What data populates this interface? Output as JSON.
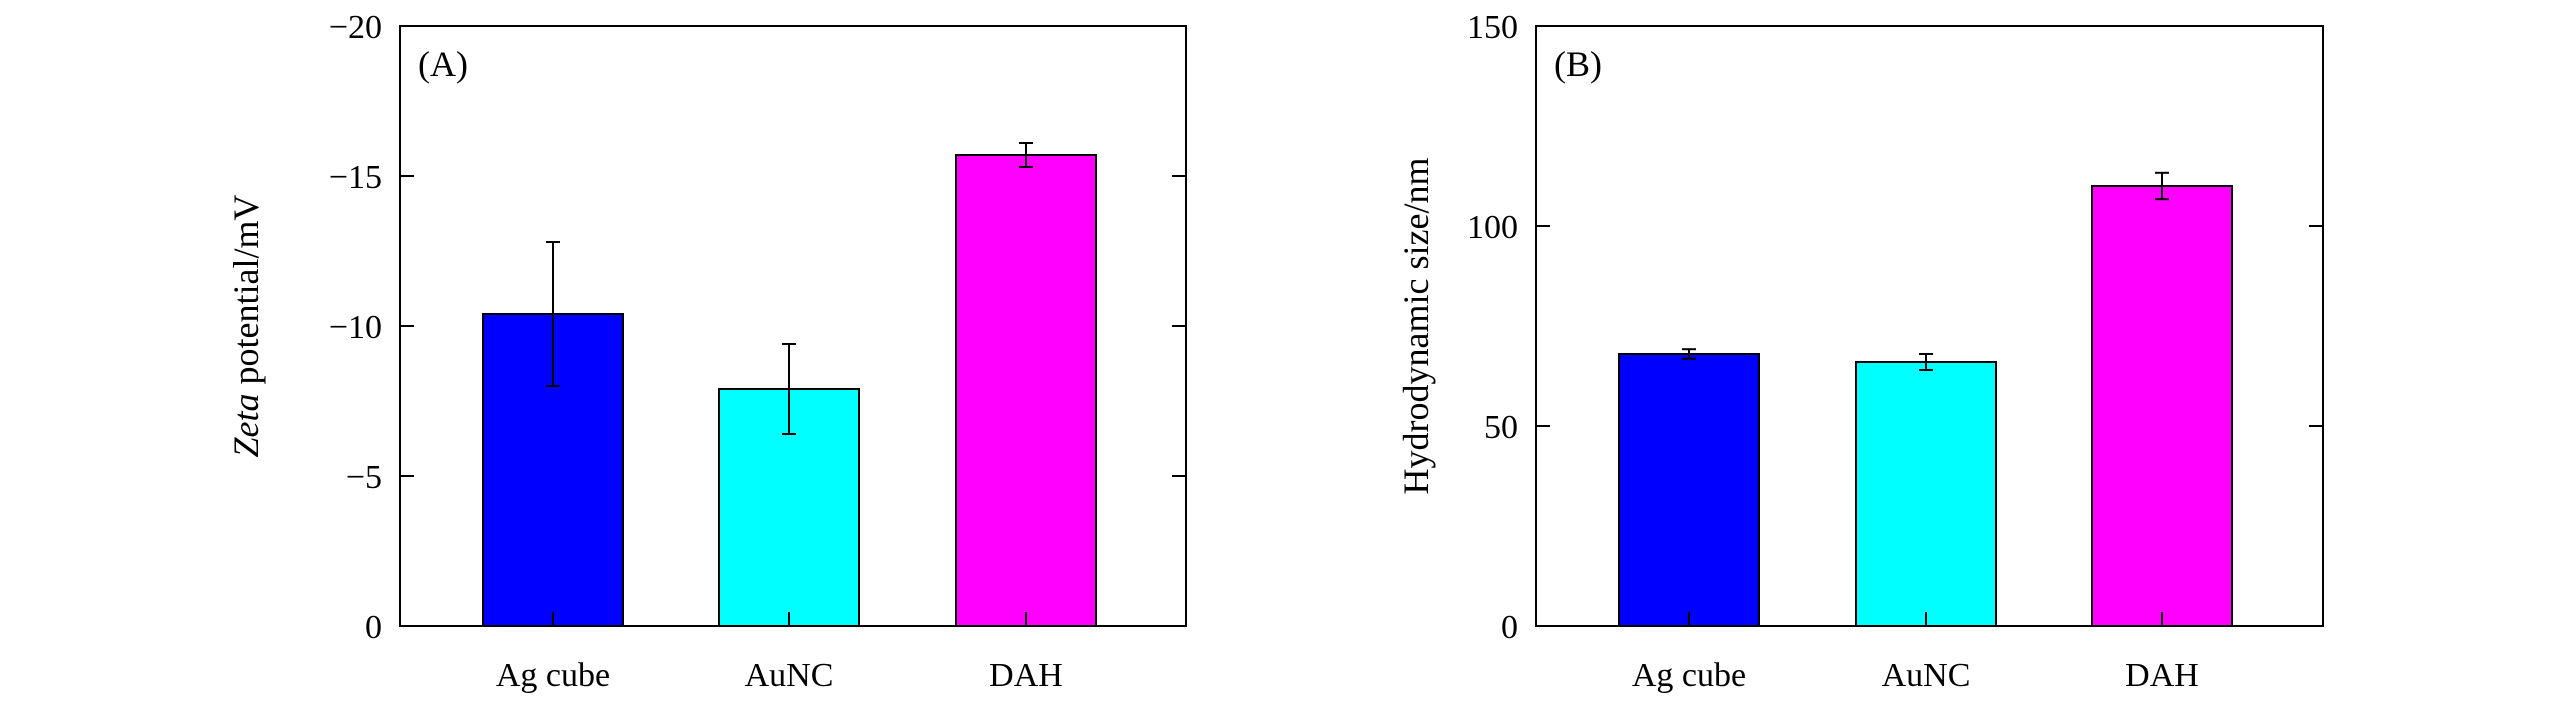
{
  "colors": {
    "Ag cube": "#0000ff",
    "AuNC": "#00ffff",
    "DAH": "#ff00ff",
    "stroke": "#000000"
  },
  "chart_data": [
    {
      "panel": "(A)",
      "type": "bar",
      "categories": [
        "Ag cube",
        "AuNC",
        "DAH"
      ],
      "values": [
        -10.4,
        -7.9,
        -15.7
      ],
      "errors": [
        2.4,
        1.5,
        0.4
      ],
      "ylabel_italic": "Zeta",
      "ylabel_rest": " potential/mV",
      "ylim": [
        0,
        -20
      ],
      "yticks": [
        0,
        -5,
        -10,
        -15,
        -20
      ],
      "yticklabels": [
        "0",
        "−5",
        "−10",
        "−15",
        "−20"
      ],
      "grid": false
    },
    {
      "panel": "(B)",
      "type": "bar",
      "categories": [
        "Ag cube",
        "AuNC",
        "DAH"
      ],
      "values": [
        68,
        66,
        110
      ],
      "errors": [
        1.2,
        2.0,
        3.3
      ],
      "ylabel": "Hydrodynamic size/nm",
      "ylim": [
        0,
        150
      ],
      "yticks": [
        0,
        50,
        100,
        150
      ],
      "yticklabels": [
        "0",
        "50",
        "100",
        "150"
      ],
      "grid": false
    }
  ]
}
